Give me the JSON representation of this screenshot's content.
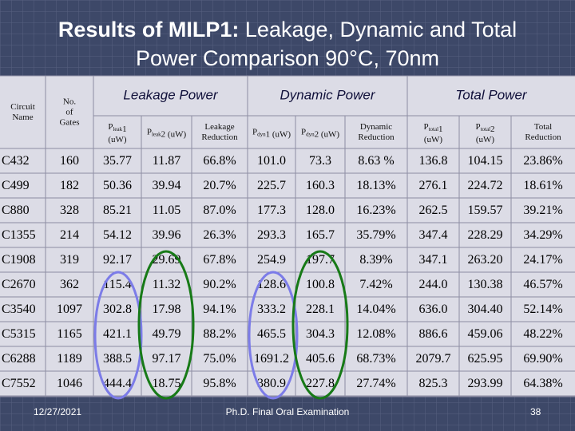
{
  "title": {
    "bold": "Results of MILP1:",
    "rest": " Leakage, Dynamic and Total",
    "line2": "Power Comparison 90°C, 70nm"
  },
  "table": {
    "row_headers": {
      "circuit": [
        "Circuit",
        "Name"
      ],
      "gates": [
        "No.",
        "of",
        "Gates"
      ]
    },
    "groups": [
      "Leakage Power",
      "Dynamic Power",
      "Total Power"
    ],
    "subheaders": [
      [
        [
          "P",
          {
            "sub": "leak"
          },
          "1"
        ],
        [
          "(uW)"
        ]
      ],
      [
        [
          "P",
          {
            "sub": "leak"
          },
          "2 (uW)"
        ]
      ],
      [
        [
          "Leakage"
        ],
        [
          "Reduction"
        ]
      ],
      [
        [
          "P",
          {
            "sub": "dyn"
          },
          "1 (uW)"
        ]
      ],
      [
        [
          "P",
          {
            "sub": "dyn"
          },
          "2 (uW)"
        ]
      ],
      [
        [
          "Dynamic"
        ],
        [
          "Reduction"
        ]
      ],
      [
        [
          "P",
          {
            "sub": "total"
          },
          "1"
        ],
        [
          "(uW)"
        ]
      ],
      [
        [
          "P",
          {
            "sub": "total"
          },
          "2"
        ],
        [
          "(uW)"
        ]
      ],
      [
        [
          "Total"
        ],
        [
          "Reduction"
        ]
      ]
    ],
    "rows": [
      [
        "C432",
        "160",
        "35.77",
        "11.87",
        "66.8%",
        "101.0",
        "73.3",
        "8.63 %",
        "136.8",
        "104.15",
        "23.86%"
      ],
      [
        "C499",
        "182",
        "50.36",
        "39.94",
        "20.7%",
        "225.7",
        "160.3",
        "18.13%",
        "276.1",
        "224.72",
        "18.61%"
      ],
      [
        "C880",
        "328",
        "85.21",
        "11.05",
        "87.0%",
        "177.3",
        "128.0",
        "16.23%",
        "262.5",
        "159.57",
        "39.21%"
      ],
      [
        "C1355",
        "214",
        "54.12",
        "39.96",
        "26.3%",
        "293.3",
        "165.7",
        "35.79%",
        "347.4",
        "228.29",
        "34.29%"
      ],
      [
        "C1908",
        "319",
        "92.17",
        "29.69",
        "67.8%",
        "254.9",
        "197.7",
        "8.39%",
        "347.1",
        "263.20",
        "24.17%"
      ],
      [
        "C2670",
        "362",
        "115.4",
        "11.32",
        "90.2%",
        "128.6",
        "100.8",
        "7.42%",
        "244.0",
        "130.38",
        "46.57%"
      ],
      [
        "C3540",
        "1097",
        "302.8",
        "17.98",
        "94.1%",
        "333.2",
        "228.1",
        "14.04%",
        "636.0",
        "304.40",
        "52.14%"
      ],
      [
        "C5315",
        "1165",
        "421.1",
        "49.79",
        "88.2%",
        "465.5",
        "304.3",
        "12.08%",
        "886.6",
        "459.06",
        "48.22%"
      ],
      [
        "C6288",
        "1189",
        "388.5",
        "97.17",
        "75.0%",
        "1691.2",
        "405.6",
        "68.73%",
        "2079.7",
        "625.95",
        "69.90%"
      ],
      [
        "C7552",
        "1046",
        "444.4",
        "18.75",
        "95.8%",
        "380.9",
        "227.8",
        "27.74%",
        "825.3",
        "293.99",
        "64.38%"
      ]
    ]
  },
  "footer": {
    "date": "12/27/2021",
    "center": "Ph.D. Final Oral Examination",
    "page": "38"
  }
}
